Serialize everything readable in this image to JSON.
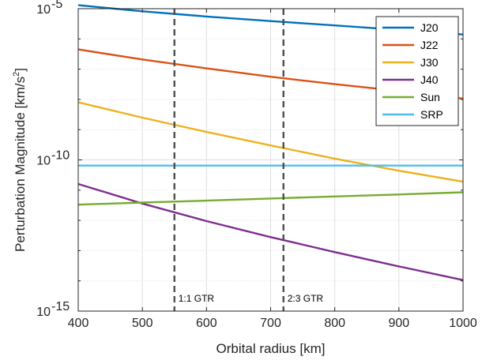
{
  "chart_data": {
    "type": "line",
    "title": "",
    "xlabel": "Orbital radius [km]",
    "ylabel_main": "Perturbation Magnitude [km/s",
    "ylabel_sup": "2",
    "ylabel_close": "]",
    "xlim": [
      400,
      1000
    ],
    "ylim": [
      1e-15,
      1e-05
    ],
    "yscale": "log",
    "grid": true,
    "legend_position": "top-right",
    "xticks": [
      400,
      500,
      600,
      700,
      800,
      900,
      1000
    ],
    "xtick_labels": [
      "400",
      "500",
      "600",
      "700",
      "800",
      "900",
      "1000"
    ],
    "yticks": [
      1e-15,
      1e-10,
      1e-05
    ],
    "ytick_labels": [
      {
        "base": "10",
        "exp": "-15"
      },
      {
        "base": "10",
        "exp": "-10"
      },
      {
        "base": "10",
        "exp": "-5"
      }
    ],
    "x": [
      400,
      500,
      600,
      700,
      800,
      900,
      1000
    ],
    "series": [
      {
        "name": "J20",
        "color": "#0072BD",
        "values": [
          1.3e-05,
          8.2e-06,
          5.5e-06,
          3.9e-06,
          2.8e-06,
          2e-06,
          1.4e-06
        ]
      },
      {
        "name": "J22",
        "color": "#D95319",
        "values": [
          4.5e-07,
          2.1e-07,
          1.06e-07,
          5.6e-08,
          3.2e-08,
          1.9e-08,
          1.06e-08
        ]
      },
      {
        "name": "J30",
        "color": "#EDB120",
        "values": [
          8e-09,
          2.5e-09,
          8.4e-10,
          3e-10,
          1.1e-10,
          4.4e-11,
          1.9e-11
        ]
      },
      {
        "name": "J40",
        "color": "#7E2F8E",
        "values": [
          1.6e-11,
          3.6e-12,
          9.5e-13,
          2.8e-13,
          8.9e-14,
          3e-14,
          1.06e-14
        ]
      },
      {
        "name": "Sun",
        "color": "#77AC30",
        "values": [
          3.3e-12,
          3.9e-12,
          4.5e-12,
          5.3e-12,
          6.2e-12,
          7.2e-12,
          8.5e-12
        ]
      },
      {
        "name": "SRP",
        "color": "#4DBEEE",
        "values": [
          6.5e-11,
          6.5e-11,
          6.5e-11,
          6.5e-11,
          6.5e-11,
          6.5e-11,
          6.5e-11
        ]
      }
    ],
    "vlines": [
      {
        "x": 550,
        "label": "1:1 GTR"
      },
      {
        "x": 720,
        "label": "2:3 GTR"
      }
    ]
  }
}
